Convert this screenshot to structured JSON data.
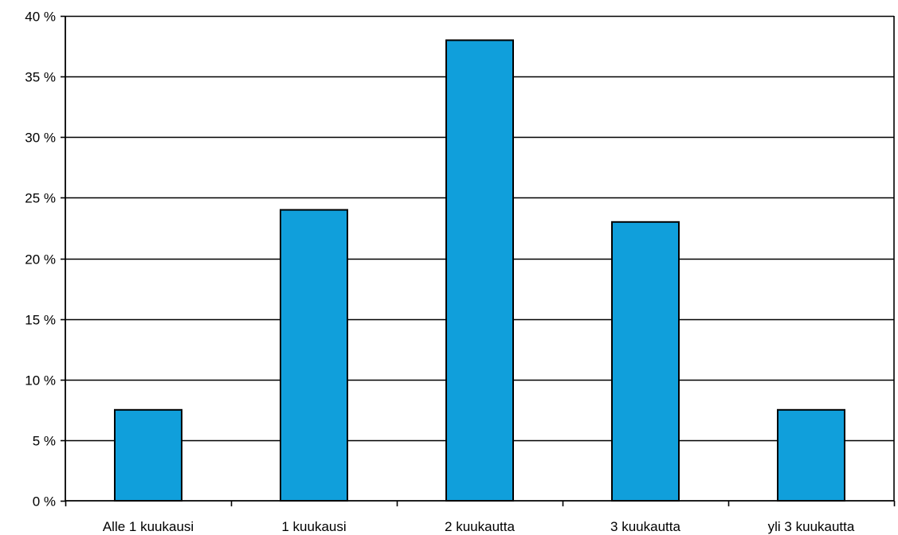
{
  "chart_data": {
    "type": "bar",
    "title": "",
    "xlabel": "",
    "ylabel": "",
    "categories": [
      "Alle 1 kuukausi",
      "1 kuukausi",
      "2 kuukautta",
      "3 kuukautta",
      "yli 3 kuukautta"
    ],
    "values": [
      7.5,
      24,
      38,
      23,
      7.5
    ],
    "ylim": [
      0,
      40
    ],
    "yticks": [
      0,
      5,
      10,
      15,
      20,
      25,
      30,
      35,
      40
    ],
    "ytick_labels": [
      "0 %",
      "5 %",
      "10 %",
      "15 %",
      "20 %",
      "25 %",
      "30 %",
      "35 %",
      "40 %"
    ],
    "grid": true,
    "legend": "none",
    "bar_color": "#109FDB",
    "bar_outline_color": "#000000"
  }
}
